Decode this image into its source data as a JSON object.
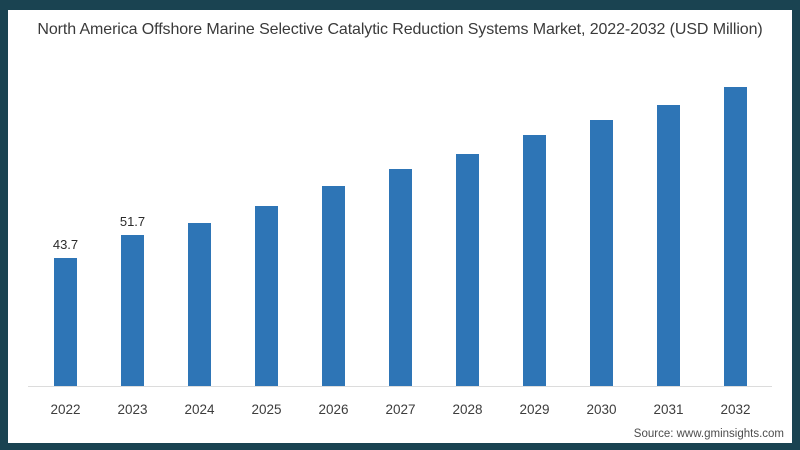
{
  "title": "North America Offshore Marine Selective Catalytic Reduction Systems Market, 2022-2032 (USD Million)",
  "source": "Source: www.gminsights.com",
  "colors": {
    "frame": "#1a4351",
    "bar": "#2E75B6",
    "axis_line": "#dcdcdc",
    "panel_background": "#ffffff"
  },
  "chart_data": {
    "type": "bar",
    "title": "North America Offshore Marine Selective Catalytic Reduction Systems Market, 2022-2032 (USD Million)",
    "categories": [
      "2022",
      "2023",
      "2024",
      "2025",
      "2026",
      "2027",
      "2028",
      "2029",
      "2030",
      "2031",
      "2032"
    ],
    "values": [
      43.7,
      51.7,
      55.6,
      61.5,
      68.2,
      74.1,
      79.3,
      85.6,
      90.7,
      96.0,
      102.2
    ],
    "data_labels": [
      "43.7",
      "51.7",
      "",
      "",
      "",
      "",
      "",
      "",
      "",
      "",
      ""
    ],
    "xlabel": "",
    "ylabel": "",
    "ylim": [
      0,
      110
    ],
    "grid": false,
    "legend": "none",
    "bar_color": "#2E75B6"
  }
}
